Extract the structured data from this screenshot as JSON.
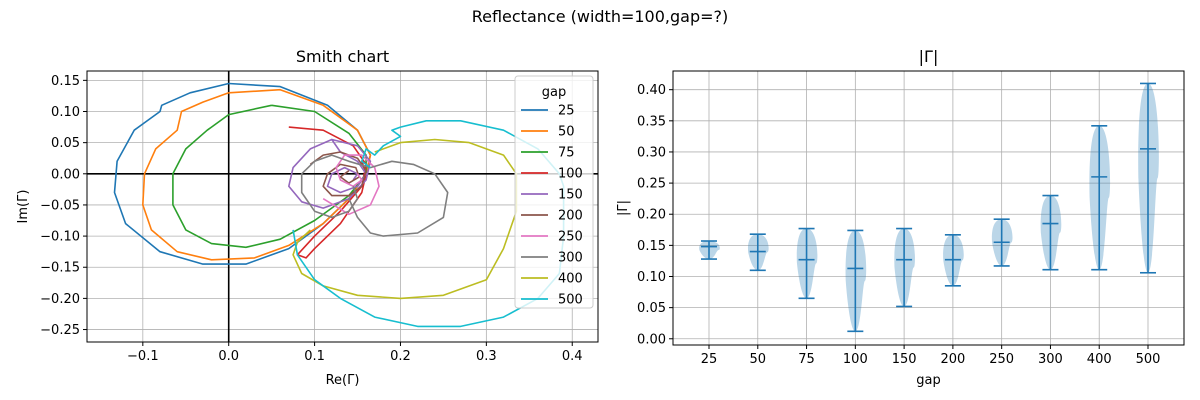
{
  "figure": {
    "suptitle": "Reflectance (width=100,gap=?)"
  },
  "chart_data": [
    {
      "type": "line",
      "title": "Smith chart",
      "xlabel": "Re(Γ)",
      "ylabel": "Im(Γ)",
      "xlim": [
        -0.165,
        0.43
      ],
      "ylim": [
        -0.27,
        0.165
      ],
      "xticks": [
        -0.1,
        0.0,
        0.1,
        0.2,
        0.3,
        0.4
      ],
      "xtick_labels": [
        "−0.1",
        "0.0",
        "0.1",
        "0.2",
        "0.3",
        "0.4"
      ],
      "yticks": [
        -0.25,
        -0.2,
        -0.15,
        -0.1,
        -0.05,
        0.0,
        0.05,
        0.1,
        0.15
      ],
      "ytick_labels": [
        "−0.25",
        "−0.20",
        "−0.15",
        "−0.10",
        "−0.05",
        "0.00",
        "0.05",
        "0.10",
        "0.15"
      ],
      "grid": true,
      "legend": {
        "title": "gap",
        "placement": "top-right"
      },
      "series": [
        {
          "name": "25",
          "color": "#1f77b4",
          "points": [
            [
              0.0,
              0.145
            ],
            [
              0.06,
              0.14
            ],
            [
              0.115,
              0.11
            ],
            [
              0.15,
              0.07
            ],
            [
              0.165,
              0.03
            ],
            [
              0.16,
              0.0
            ],
            [
              0.14,
              -0.04
            ],
            [
              0.11,
              -0.08
            ],
            [
              0.07,
              -0.12
            ],
            [
              0.02,
              -0.145
            ],
            [
              -0.03,
              -0.145
            ],
            [
              -0.08,
              -0.125
            ],
            [
              -0.12,
              -0.08
            ],
            [
              -0.133,
              -0.03
            ],
            [
              -0.13,
              0.02
            ],
            [
              -0.11,
              0.07
            ],
            [
              -0.08,
              0.1
            ],
            [
              -0.078,
              0.11
            ],
            [
              -0.045,
              0.13
            ],
            [
              0.0,
              0.145
            ]
          ]
        },
        {
          "name": "50",
          "color": "#ff7f0e",
          "points": [
            [
              0.0,
              0.13
            ],
            [
              0.06,
              0.135
            ],
            [
              0.11,
              0.11
            ],
            [
              0.15,
              0.07
            ],
            [
              0.165,
              0.03
            ],
            [
              0.16,
              0.0
            ],
            [
              0.14,
              -0.04
            ],
            [
              0.11,
              -0.08
            ],
            [
              0.07,
              -0.115
            ],
            [
              0.03,
              -0.135
            ],
            [
              -0.02,
              -0.138
            ],
            [
              -0.06,
              -0.125
            ],
            [
              -0.09,
              -0.09
            ],
            [
              -0.1,
              -0.05
            ],
            [
              -0.098,
              0.0
            ],
            [
              -0.085,
              0.04
            ],
            [
              -0.06,
              0.07
            ],
            [
              -0.055,
              0.1
            ],
            [
              -0.03,
              0.115
            ],
            [
              0.0,
              0.13
            ]
          ]
        },
        {
          "name": "75",
          "color": "#2ca02c",
          "points": [
            [
              0.05,
              0.11
            ],
            [
              0.1,
              0.1
            ],
            [
              0.14,
              0.065
            ],
            [
              0.16,
              0.03
            ],
            [
              0.16,
              0.0
            ],
            [
              0.14,
              -0.035
            ],
            [
              0.1,
              -0.075
            ],
            [
              0.06,
              -0.105
            ],
            [
              0.02,
              -0.118
            ],
            [
              -0.02,
              -0.112
            ],
            [
              -0.05,
              -0.09
            ],
            [
              -0.065,
              -0.05
            ],
            [
              -0.065,
              0.0
            ],
            [
              -0.05,
              0.04
            ],
            [
              -0.025,
              0.07
            ],
            [
              -0.02,
              0.075
            ],
            [
              0.0,
              0.095
            ],
            [
              0.05,
              0.11
            ]
          ]
        },
        {
          "name": "100",
          "color": "#d62728",
          "points": [
            [
              0.07,
              0.075
            ],
            [
              0.11,
              0.07
            ],
            [
              0.145,
              0.045
            ],
            [
              0.16,
              0.015
            ],
            [
              0.155,
              -0.02
            ],
            [
              0.13,
              -0.06
            ],
            [
              0.1,
              -0.1
            ],
            [
              0.08,
              -0.13
            ],
            [
              0.09,
              -0.135
            ],
            [
              0.1,
              -0.12
            ],
            [
              0.13,
              -0.08
            ],
            [
              0.155,
              -0.03
            ],
            [
              0.16,
              0.0
            ],
            [
              0.155,
              0.02
            ]
          ]
        },
        {
          "name": "150",
          "color": "#9467bd",
          "points": [
            [
              0.12,
              0.055
            ],
            [
              0.15,
              0.045
            ],
            [
              0.165,
              0.02
            ],
            [
              0.16,
              -0.01
            ],
            [
              0.14,
              -0.04
            ],
            [
              0.11,
              -0.055
            ],
            [
              0.085,
              -0.045
            ],
            [
              0.07,
              -0.02
            ],
            [
              0.075,
              0.01
            ],
            [
              0.095,
              0.04
            ],
            [
              0.12,
              0.055
            ],
            [
              0.13,
              0.035
            ],
            [
              0.15,
              0.02
            ],
            [
              0.16,
              0.0
            ],
            [
              0.15,
              -0.02
            ],
            [
              0.13,
              -0.03
            ],
            [
              0.115,
              -0.02
            ],
            [
              0.12,
              0.0
            ],
            [
              0.135,
              0.01
            ],
            [
              0.15,
              0.0
            ],
            [
              0.145,
              -0.01
            ]
          ]
        },
        {
          "name": "200",
          "color": "#8c564b",
          "points": [
            [
              0.095,
              0.015
            ],
            [
              0.11,
              0.03
            ],
            [
              0.13,
              0.035
            ],
            [
              0.15,
              0.025
            ],
            [
              0.16,
              0.005
            ],
            [
              0.155,
              -0.02
            ],
            [
              0.14,
              -0.035
            ],
            [
              0.12,
              -0.035
            ],
            [
              0.11,
              -0.02
            ],
            [
              0.115,
              0.0
            ],
            [
              0.13,
              0.015
            ],
            [
              0.148,
              0.01
            ],
            [
              0.152,
              -0.005
            ],
            [
              0.14,
              -0.015
            ],
            [
              0.13,
              -0.005
            ],
            [
              0.14,
              0.005
            ]
          ]
        },
        {
          "name": "250",
          "color": "#e377c2",
          "points": [
            [
              0.11,
              -0.04
            ],
            [
              0.14,
              -0.065
            ],
            [
              0.165,
              -0.05
            ],
            [
              0.175,
              -0.02
            ],
            [
              0.17,
              0.01
            ],
            [
              0.155,
              0.03
            ],
            [
              0.135,
              0.03
            ],
            [
              0.125,
              0.01
            ],
            [
              0.13,
              -0.01
            ],
            [
              0.145,
              -0.02
            ],
            [
              0.155,
              -0.01
            ],
            [
              0.15,
              0.0
            ]
          ]
        },
        {
          "name": "300",
          "color": "#7f7f7f",
          "points": [
            [
              0.14,
              -0.04
            ],
            [
              0.15,
              -0.07
            ],
            [
              0.165,
              -0.095
            ],
            [
              0.18,
              -0.1
            ],
            [
              0.22,
              -0.095
            ],
            [
              0.25,
              -0.07
            ],
            [
              0.255,
              -0.03
            ],
            [
              0.24,
              0.0
            ],
            [
              0.215,
              0.015
            ],
            [
              0.19,
              0.02
            ],
            [
              0.165,
              0.01
            ],
            [
              0.14,
              0.02
            ],
            [
              0.12,
              0.03
            ],
            [
              0.1,
              0.02
            ],
            [
              0.085,
              0.0
            ],
            [
              0.085,
              -0.03
            ],
            [
              0.1,
              -0.06
            ],
            [
              0.12,
              -0.07
            ],
            [
              0.14,
              -0.06
            ],
            [
              0.15,
              -0.04
            ],
            [
              0.145,
              -0.02
            ]
          ]
        },
        {
          "name": "400",
          "color": "#bcbd22",
          "points": [
            [
              0.17,
              0.035
            ],
            [
              0.2,
              0.05
            ],
            [
              0.24,
              0.055
            ],
            [
              0.28,
              0.05
            ],
            [
              0.32,
              0.03
            ],
            [
              0.335,
              0.0
            ],
            [
              0.335,
              -0.06
            ],
            [
              0.32,
              -0.12
            ],
            [
              0.3,
              -0.17
            ],
            [
              0.25,
              -0.195
            ],
            [
              0.2,
              -0.2
            ],
            [
              0.15,
              -0.195
            ],
            [
              0.11,
              -0.18
            ],
            [
              0.085,
              -0.16
            ],
            [
              0.075,
              -0.13
            ],
            [
              0.08,
              -0.11
            ],
            [
              0.095,
              -0.09
            ]
          ]
        },
        {
          "name": "500",
          "color": "#17becf",
          "points": [
            [
              0.075,
              -0.09
            ],
            [
              0.08,
              -0.13
            ],
            [
              0.1,
              -0.17
            ],
            [
              0.13,
              -0.2
            ],
            [
              0.17,
              -0.23
            ],
            [
              0.22,
              -0.245
            ],
            [
              0.27,
              -0.245
            ],
            [
              0.32,
              -0.23
            ],
            [
              0.36,
              -0.2
            ],
            [
              0.385,
              -0.16
            ],
            [
              0.39,
              -0.1
            ],
            [
              0.39,
              -0.02
            ],
            [
              0.385,
              0.0
            ],
            [
              0.36,
              0.04
            ],
            [
              0.32,
              0.07
            ],
            [
              0.27,
              0.085
            ],
            [
              0.23,
              0.085
            ],
            [
              0.2,
              0.075
            ],
            [
              0.19,
              0.07
            ],
            [
              0.2,
              0.06
            ],
            [
              0.18,
              0.045
            ],
            [
              0.17,
              0.03
            ],
            [
              0.16,
              0.04
            ],
            [
              0.155,
              0.02
            ],
            [
              0.165,
              0.01
            ]
          ]
        }
      ]
    },
    {
      "type": "violin",
      "title": "|Γ|",
      "xlabel": "gap",
      "ylabel": "|Γ|",
      "ylim": [
        -0.01,
        0.43
      ],
      "yticks": [
        0.0,
        0.05,
        0.1,
        0.15,
        0.2,
        0.25,
        0.3,
        0.35,
        0.4
      ],
      "ytick_labels": [
        "0.00",
        "0.05",
        "0.10",
        "0.15",
        "0.20",
        "0.25",
        "0.30",
        "0.35",
        "0.40"
      ],
      "grid": true,
      "color": "#1f77b4",
      "categories": [
        "25",
        "50",
        "75",
        "100",
        "150",
        "200",
        "250",
        "300",
        "400",
        "500"
      ],
      "stats": [
        {
          "min": 0.128,
          "median": 0.148,
          "max": 0.157
        },
        {
          "min": 0.11,
          "median": 0.14,
          "max": 0.168
        },
        {
          "min": 0.065,
          "median": 0.127,
          "max": 0.177
        },
        {
          "min": 0.012,
          "median": 0.113,
          "max": 0.174
        },
        {
          "min": 0.052,
          "median": 0.127,
          "max": 0.177
        },
        {
          "min": 0.085,
          "median": 0.127,
          "max": 0.167
        },
        {
          "min": 0.117,
          "median": 0.155,
          "max": 0.192
        },
        {
          "min": 0.111,
          "median": 0.185,
          "max": 0.23
        },
        {
          "min": 0.111,
          "median": 0.26,
          "max": 0.342
        },
        {
          "min": 0.106,
          "median": 0.305,
          "max": 0.41
        }
      ]
    }
  ]
}
